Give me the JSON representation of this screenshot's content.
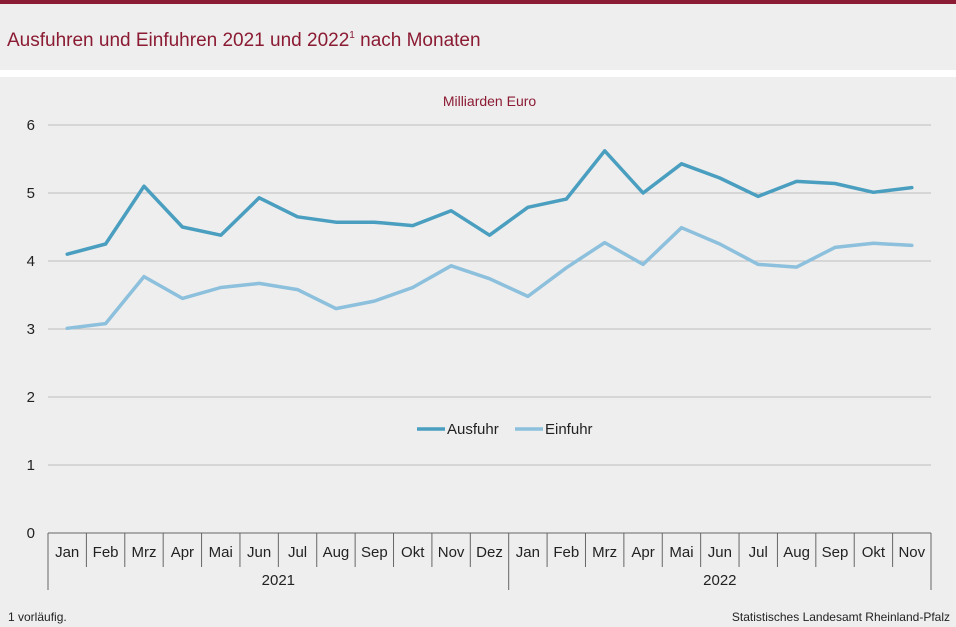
{
  "header": {
    "title": "Ausfuhren und Einfuhren 2021 und 2022",
    "title_footnote_mark": "1",
    "title_suffix": " nach Monaten"
  },
  "footer": {
    "footnote": "1 vorläufig.",
    "source": "Statistisches Landesamt Rheinland-Pfalz"
  },
  "colors": {
    "brand": "#8b1b33",
    "ausfuhr": "#4a9ebf",
    "einfuhr": "#8cc0dc",
    "grid": "#bdbdbd",
    "axis": "#666666"
  },
  "chart_data": {
    "type": "line",
    "unit_label": "Milliarden Euro",
    "ylim": [
      0,
      6
    ],
    "yticks": [
      0,
      1,
      2,
      3,
      4,
      5,
      6
    ],
    "grid": true,
    "legend_position": "center",
    "categories": [
      "Jan",
      "Feb",
      "Mrz",
      "Apr",
      "Mai",
      "Jun",
      "Jul",
      "Aug",
      "Sep",
      "Okt",
      "Nov",
      "Dez",
      "Jan",
      "Feb",
      "Mrz",
      "Apr",
      "Mai",
      "Jun",
      "Jul",
      "Aug",
      "Sep",
      "Okt",
      "Nov"
    ],
    "year_groups": [
      {
        "label": "2021",
        "count": 12
      },
      {
        "label": "2022",
        "count": 11
      }
    ],
    "series": [
      {
        "name": "Ausfuhr",
        "values": [
          4.1,
          4.25,
          5.1,
          4.5,
          4.38,
          4.93,
          4.65,
          4.57,
          4.57,
          4.52,
          4.74,
          4.38,
          4.79,
          4.91,
          5.62,
          5.0,
          5.43,
          5.22,
          4.95,
          5.17,
          5.14,
          5.01,
          5.08
        ]
      },
      {
        "name": "Einfuhr",
        "values": [
          3.01,
          3.08,
          3.77,
          3.45,
          3.61,
          3.67,
          3.58,
          3.3,
          3.41,
          3.61,
          3.93,
          3.74,
          3.48,
          3.9,
          4.27,
          3.95,
          4.49,
          4.25,
          3.95,
          3.91,
          4.2,
          4.26,
          4.23
        ]
      }
    ]
  }
}
